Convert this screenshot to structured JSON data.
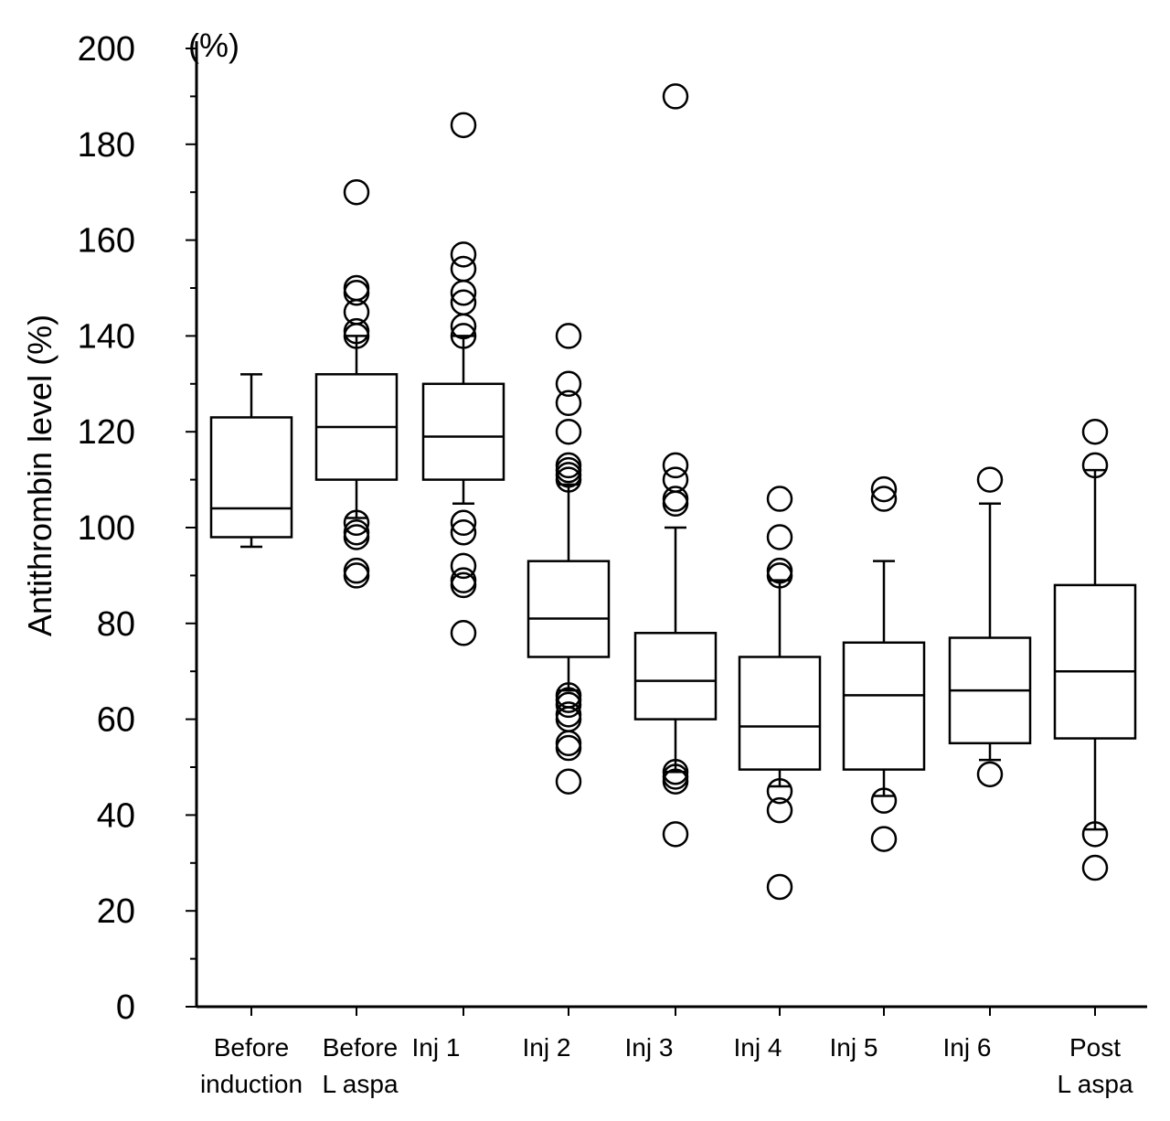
{
  "chart_data": {
    "type": "box",
    "title": "",
    "ylabel": "Antithrombin level (%)",
    "yunit": "(%)",
    "xlabel": "",
    "ylim": [
      0,
      200
    ],
    "yticks": [
      0,
      20,
      40,
      60,
      80,
      100,
      120,
      140,
      160,
      180,
      200
    ],
    "categories": [
      [
        "Before",
        "induction"
      ],
      [
        "Before",
        "L aspa"
      ],
      [
        "Inj 1"
      ],
      [
        "Inj 2"
      ],
      [
        "Inj 3"
      ],
      [
        "Inj 4"
      ],
      [
        "Inj 5"
      ],
      [
        "Inj 6"
      ],
      [
        "Post",
        "L aspa"
      ]
    ],
    "boxes": [
      {
        "whisker_low": 96,
        "q1": 98,
        "median": 104,
        "q3": 123,
        "whisker_high": 132,
        "outliers": []
      },
      {
        "whisker_low": 102,
        "q1": 110,
        "median": 121,
        "q3": 132,
        "whisker_high": 140,
        "outliers": [
          170,
          150,
          149,
          145,
          141,
          140,
          101,
          99,
          98,
          91,
          90
        ]
      },
      {
        "whisker_low": 105,
        "q1": 110,
        "median": 119,
        "q3": 130,
        "whisker_high": 140,
        "outliers": [
          184,
          157,
          154,
          149,
          147,
          142,
          140,
          101,
          99,
          92,
          89,
          88,
          78
        ]
      },
      {
        "whisker_low": 66,
        "q1": 73,
        "median": 81,
        "q3": 93,
        "whisker_high": 109,
        "outliers": [
          140,
          130,
          126,
          120,
          113,
          112,
          111,
          110,
          65,
          64,
          63,
          61,
          60,
          55,
          54,
          47
        ]
      },
      {
        "whisker_low": 49,
        "q1": 60,
        "median": 68,
        "q3": 78,
        "whisker_high": 100,
        "outliers": [
          190,
          113,
          110,
          106,
          105,
          49,
          48,
          47,
          36
        ]
      },
      {
        "whisker_low": 46,
        "q1": 49.5,
        "median": 58.5,
        "q3": 73,
        "whisker_high": 89,
        "outliers": [
          106,
          98,
          91,
          90,
          45,
          41,
          25
        ]
      },
      {
        "whisker_low": 44,
        "q1": 49.5,
        "median": 65,
        "q3": 76,
        "whisker_high": 93,
        "outliers": [
          108,
          106,
          43,
          35
        ]
      },
      {
        "whisker_low": 51.5,
        "q1": 55,
        "median": 66,
        "q3": 77,
        "whisker_high": 105,
        "outliers": [
          110,
          48.5
        ]
      },
      {
        "whisker_low": 37,
        "q1": 56,
        "median": 70,
        "q3": 88,
        "whisker_high": 112,
        "outliers": [
          120,
          113,
          36,
          29
        ]
      }
    ]
  }
}
